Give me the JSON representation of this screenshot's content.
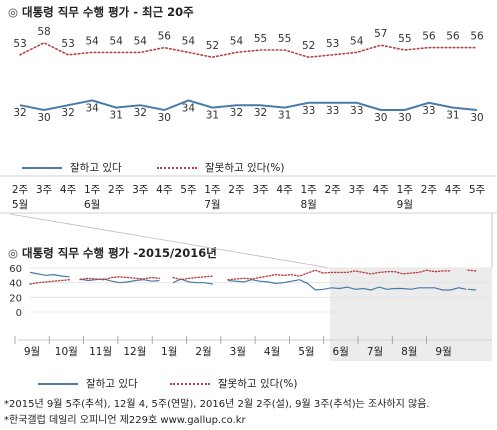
{
  "chart_data": [
    {
      "type": "line",
      "title": "대통령 직무 수행 평가 - 최근 20주",
      "title_mark": "◎",
      "x_tick_labels": [
        [
          "2주",
          "5월"
        ],
        [
          "3주",
          ""
        ],
        [
          "4주",
          ""
        ],
        [
          "1주",
          "6월"
        ],
        [
          "2주",
          ""
        ],
        [
          "3주",
          ""
        ],
        [
          "4주",
          ""
        ],
        [
          "5주",
          ""
        ],
        [
          "1주",
          "7월"
        ],
        [
          "2주",
          ""
        ],
        [
          "3주",
          ""
        ],
        [
          "4주",
          ""
        ],
        [
          "1주",
          "8월"
        ],
        [
          "2주",
          ""
        ],
        [
          "3주",
          ""
        ],
        [
          "4주",
          ""
        ],
        [
          "1주",
          "9월"
        ],
        [
          "2주",
          ""
        ],
        [
          "4주",
          ""
        ],
        [
          "5주",
          ""
        ]
      ],
      "series": [
        {
          "name": "잘하고 있다",
          "color": "#4a7aa8",
          "style": "solid",
          "values": [
            32,
            30,
            32,
            34,
            31,
            32,
            30,
            34,
            31,
            32,
            32,
            31,
            33,
            33,
            33,
            30,
            30,
            33,
            31,
            30
          ]
        },
        {
          "name": "잘못하고 있다(%)",
          "color": "#b84040",
          "style": "dotted",
          "values": [
            53,
            58,
            53,
            54,
            54,
            54,
            56,
            54,
            52,
            54,
            55,
            55,
            52,
            53,
            54,
            57,
            55,
            56,
            56,
            56
          ]
        }
      ],
      "legend": [
        "잘하고 있다",
        "잘못하고 있다(%)"
      ],
      "legend_position": "bottom",
      "ylim": [
        25,
        62
      ],
      "grid": false
    },
    {
      "type": "line",
      "title": "대통령 직무 수행 평가 -2015/2016년",
      "title_mark": "◎",
      "yticks": [
        0,
        20,
        40,
        60
      ],
      "ylim": [
        0,
        60
      ],
      "month_labels": [
        "9월",
        "10월",
        "11월",
        "12월",
        "1월",
        "2월",
        "3월",
        "4월",
        "5월",
        "6월",
        "7월",
        "8월",
        "9월"
      ],
      "highlight_range": "최근 20주",
      "series": [
        {
          "name": "잘하고 있다",
          "color": "#4a7aa8",
          "style": "solid",
          "segments": [
            [
              54,
              52,
              50,
              51,
              49,
              48
            ],
            [
              45,
              43,
              44,
              45,
              42,
              40,
              41,
              43,
              44,
              42,
              43
            ],
            [
              40,
              45,
              41,
              40,
              40,
              38
            ],
            [
              43,
              42,
              41,
              44,
              42,
              41,
              39,
              40,
              42,
              44,
              39,
              30,
              31,
              33,
              32,
              34,
              31,
              32,
              30,
              34,
              31,
              32,
              32,
              31,
              33,
              33,
              33,
              30,
              30,
              33,
              31
            ],
            [
              31,
              30
            ]
          ]
        },
        {
          "name": "잘못하고 있다(%)",
          "color": "#b84040",
          "style": "dotted",
          "segments": [
            [
              38,
              40,
              41,
              42,
              43,
              44
            ],
            [
              44,
              46,
              45,
              44,
              47,
              48,
              47,
              46,
              45,
              47,
              46
            ],
            [
              47,
              44,
              46,
              47,
              48,
              49
            ],
            [
              44,
              45,
              46,
              45,
              47,
              49,
              51,
              50,
              51,
              49,
              53,
              57,
              53,
              54,
              54,
              54,
              56,
              54,
              52,
              54,
              55,
              55,
              52,
              53,
              54,
              57,
              55,
              56,
              56
            ],
            [
              57,
              56
            ]
          ]
        }
      ],
      "legend": [
        "잘하고 있다",
        "잘못하고 있다(%)"
      ],
      "legend_position": "bottom"
    }
  ],
  "notes": [
    "*2015년 9월 5주(추석), 12월 4, 5주(연말), 2016년 2월 2주(설), 9월 3주(추석)는 조사하지 않음.",
    "*한국갤럽 데일리 오피니언 제229호 www.gallup.co.kr"
  ]
}
